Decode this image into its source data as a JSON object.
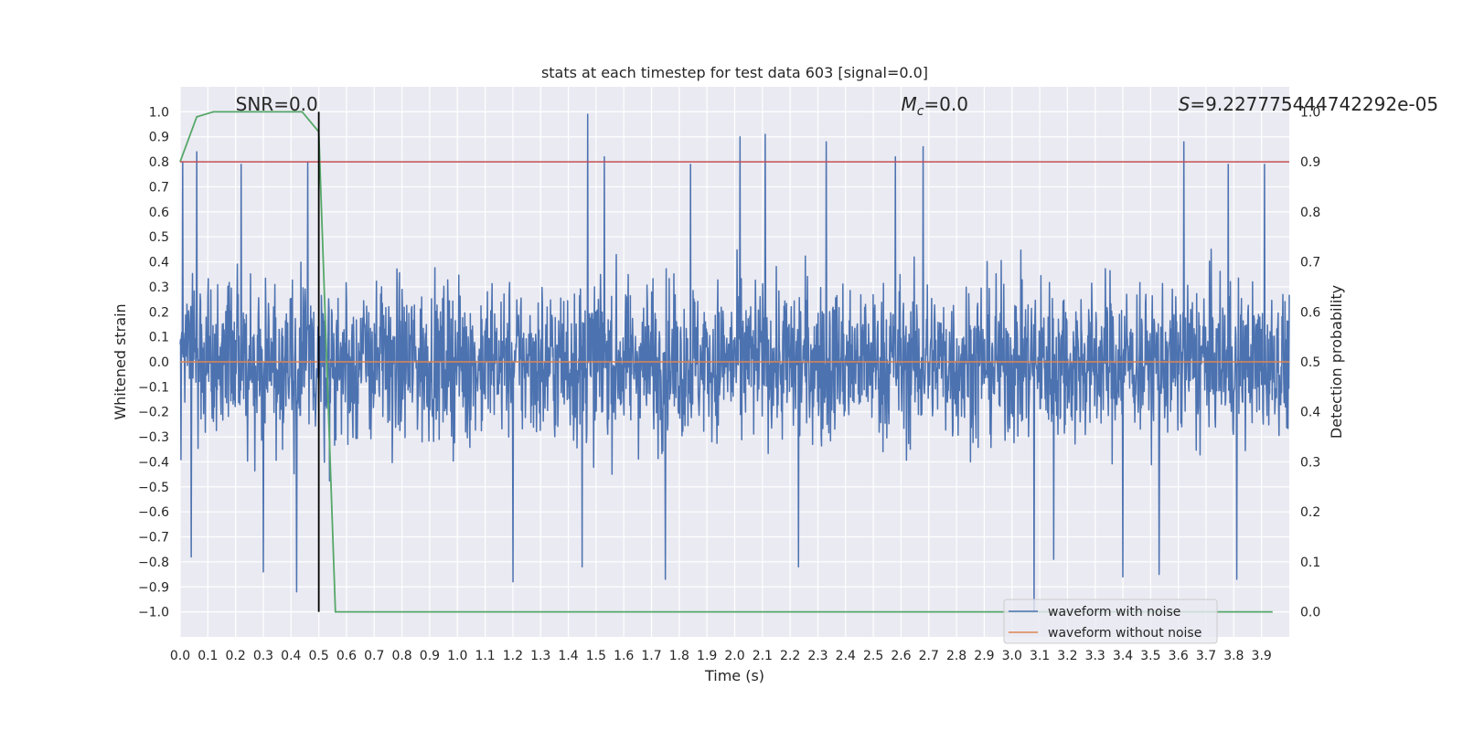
{
  "chart_data": {
    "type": "line",
    "title": "stats at each timestep for test data 603 [signal=0.0]",
    "xlabel": "Time (s)",
    "ylabel": "Whitened strain",
    "y2label": "Detection probability",
    "xlim": [
      0.0,
      4.0
    ],
    "ylim": [
      -1.1,
      1.1
    ],
    "y2lim": [
      -0.05,
      1.05
    ],
    "x_ticks": [
      "0.0",
      "0.1",
      "0.2",
      "0.3",
      "0.4",
      "0.5",
      "0.6",
      "0.7",
      "0.8",
      "0.9",
      "1.0",
      "1.1",
      "1.2",
      "1.3",
      "1.4",
      "1.5",
      "1.6",
      "1.7",
      "1.8",
      "1.9",
      "2.0",
      "2.1",
      "2.2",
      "2.3",
      "2.4",
      "2.5",
      "2.6",
      "2.7",
      "2.8",
      "2.9",
      "3.0",
      "3.1",
      "3.2",
      "3.3",
      "3.4",
      "3.5",
      "3.6",
      "3.7",
      "3.8",
      "3.9"
    ],
    "y_ticks": [
      "1.0",
      "0.9",
      "0.8",
      "0.7",
      "0.6",
      "0.5",
      "0.4",
      "0.3",
      "0.2",
      "0.1",
      "0.0",
      "−0.1",
      "−0.2",
      "−0.3",
      "−0.4",
      "−0.5",
      "−0.6",
      "−0.7",
      "−0.8",
      "−0.9",
      "−1.0"
    ],
    "y2_ticks": [
      "1.0",
      "0.9",
      "0.8",
      "0.7",
      "0.6",
      "0.5",
      "0.4",
      "0.3",
      "0.2",
      "0.1",
      "0.0"
    ],
    "grid": true,
    "legend_position": "lower-right",
    "annotations": {
      "snr": "SNR=0.0",
      "mc_symbol": "M",
      "mc_sub": "c",
      "mc_value": "=0.0",
      "s_symbol": "S",
      "s_value": "=9.227775444742292e-05"
    },
    "series": [
      {
        "name": "waveform with noise",
        "axis": "left",
        "color": "#4c72b0",
        "kind": "noise",
        "x_range": [
          0.0,
          4.0
        ],
        "amplitude_typical": 0.35,
        "peaks": [
          [
            0.01,
            0.8
          ],
          [
            0.06,
            0.84
          ],
          [
            0.22,
            0.79
          ],
          [
            0.42,
            0.8
          ],
          [
            0.46,
            0.8
          ],
          [
            1.47,
            0.99
          ],
          [
            1.53,
            0.82
          ],
          [
            1.84,
            0.79
          ],
          [
            2.02,
            0.9
          ],
          [
            2.11,
            0.91
          ],
          [
            2.33,
            0.88
          ],
          [
            2.58,
            0.82
          ],
          [
            2.68,
            0.86
          ],
          [
            3.62,
            0.88
          ],
          [
            3.78,
            0.79
          ],
          [
            3.91,
            0.79
          ]
        ],
        "troughs": [
          [
            0.04,
            -0.78
          ],
          [
            0.3,
            -0.84
          ],
          [
            0.42,
            -0.92
          ],
          [
            1.2,
            -0.88
          ],
          [
            1.45,
            -0.82
          ],
          [
            1.75,
            -0.87
          ],
          [
            2.23,
            -0.82
          ],
          [
            3.08,
            -1.0
          ],
          [
            3.15,
            -0.79
          ],
          [
            3.4,
            -0.86
          ],
          [
            3.53,
            -0.85
          ],
          [
            3.81,
            -0.87
          ]
        ]
      },
      {
        "name": "waveform without noise",
        "axis": "left",
        "color": "#dd8452",
        "x": [
          0.0,
          4.0
        ],
        "y": [
          0.0,
          0.0
        ]
      },
      {
        "name": "",
        "axis": "right",
        "color": "#55a868",
        "x": [
          0.0,
          0.06,
          0.12,
          0.19,
          0.25,
          0.31,
          0.37,
          0.44,
          0.5,
          0.56,
          0.62,
          0.69,
          3.94
        ],
        "y": [
          0.9,
          0.99,
          1.0,
          1.0,
          1.0,
          1.0,
          1.0,
          1.0,
          0.96,
          0.0,
          0.0,
          0.0,
          0.0
        ]
      }
    ],
    "reference_lines": [
      {
        "orientation": "horizontal",
        "axis": "left",
        "value": 0.8,
        "color": "#c44e52"
      },
      {
        "orientation": "vertical",
        "value": 0.5,
        "color": "#000000",
        "y_from": -1.0,
        "y_to": 1.0
      }
    ]
  }
}
